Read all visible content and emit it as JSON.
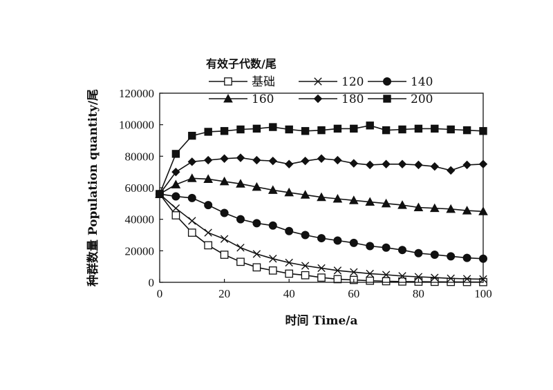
{
  "chart_data": {
    "type": "line",
    "title": "",
    "xlabel": "时间 Time/a",
    "ylabel": "种群数量 Population quantity/尾",
    "legend_title": "有效子代数/尾",
    "legend_position": "top",
    "grid": false,
    "xlim": [
      0,
      100
    ],
    "ylim": [
      0,
      120000
    ],
    "x_ticks": [
      "0",
      "20",
      "40",
      "60",
      "80",
      "100"
    ],
    "y_ticks": [
      "0",
      "20000",
      "40000",
      "60000",
      "80000",
      "100000",
      "120000"
    ],
    "x": [
      0,
      5,
      10,
      15,
      20,
      25,
      30,
      35,
      40,
      45,
      50,
      55,
      60,
      65,
      70,
      75,
      80,
      85,
      90,
      95,
      100
    ],
    "series": [
      {
        "name": "基础",
        "marker": "open-square",
        "values": [
          56000,
          42500,
          31500,
          23500,
          17500,
          13000,
          9500,
          7500,
          5500,
          4500,
          3000,
          2000,
          1500,
          1000,
          700,
          500,
          400,
          300,
          250,
          200,
          150
        ]
      },
      {
        "name": "120",
        "marker": "x",
        "values": [
          56000,
          47000,
          39000,
          31500,
          27500,
          22000,
          18000,
          15000,
          12500,
          10500,
          9000,
          7500,
          6500,
          5500,
          4800,
          4000,
          3500,
          3000,
          2500,
          2200,
          2000
        ]
      },
      {
        "name": "140",
        "marker": "circle",
        "values": [
          56000,
          54500,
          53500,
          49000,
          44000,
          40000,
          37500,
          36000,
          32500,
          30000,
          28000,
          26500,
          25000,
          23000,
          22000,
          20500,
          18500,
          17500,
          16500,
          15500,
          15000
        ]
      },
      {
        "name": "160",
        "marker": "triangle",
        "values": [
          56000,
          62000,
          66000,
          65500,
          64000,
          62500,
          60500,
          58500,
          57000,
          55500,
          54000,
          53000,
          52000,
          51000,
          50000,
          49000,
          47500,
          47000,
          46500,
          45500,
          45000
        ]
      },
      {
        "name": "180",
        "marker": "diamond",
        "values": [
          56000,
          70000,
          76500,
          77500,
          78500,
          79000,
          77500,
          77000,
          75000,
          77000,
          78500,
          77500,
          75500,
          74500,
          75000,
          75000,
          74500,
          73500,
          71000,
          74500,
          75000
        ]
      },
      {
        "name": "200",
        "marker": "filled-square",
        "values": [
          56000,
          81500,
          93000,
          95500,
          96000,
          97000,
          97500,
          98500,
          97000,
          96000,
          96500,
          97500,
          97500,
          99500,
          96500,
          97000,
          97500,
          97500,
          97000,
          96500,
          96000
        ]
      }
    ]
  }
}
